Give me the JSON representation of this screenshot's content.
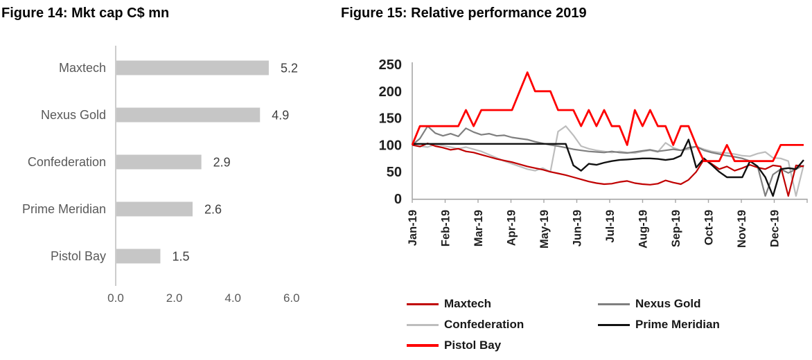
{
  "figures": [
    {
      "title": "Figure 14: Mkt cap C$ mn"
    },
    {
      "title": "Figure 15: Relative performance 2019"
    }
  ],
  "colors": {
    "bar_fill": "#c6c6c6",
    "axis_line": "#bfbfbf",
    "bar_label": "#595959",
    "bar_value": "#3f3f3f",
    "line_axis": "#a6a6a6",
    "line_tick_text": "#1f1f1f"
  },
  "chart_data": [
    {
      "type": "bar",
      "orientation": "horizontal",
      "title": "Figure 14: Mkt cap C$ mn",
      "categories": [
        "Maxtech",
        "Nexus Gold",
        "Confederation",
        "Prime Meridian",
        "Pistol Bay"
      ],
      "values": [
        5.2,
        4.9,
        2.9,
        2.6,
        1.5
      ],
      "value_labels": [
        "5.2",
        "4.9",
        "2.9",
        "2.6",
        "1.5"
      ],
      "xlabel": "",
      "ylabel": "",
      "xlim": [
        0.0,
        6.0
      ],
      "x_tick_values": [
        0,
        2,
        4,
        6
      ],
      "x_tick_labels": [
        "0.0",
        "2.0",
        "4.0",
        "6.0"
      ],
      "grid": false
    },
    {
      "type": "line",
      "title": "Figure 15: Relative performance 2019",
      "xlabel": "",
      "ylabel": "",
      "ylim": [
        0,
        250
      ],
      "y_tick_values": [
        0,
        50,
        100,
        150,
        200,
        250
      ],
      "y_tick_labels": [
        "0",
        "50",
        "100",
        "150",
        "200",
        "250"
      ],
      "x_categories": [
        "Jan-19",
        "Feb-19",
        "Mar-19",
        "Apr-19",
        "May-19",
        "Jun-19",
        "Jul-19",
        "Aug-19",
        "Sep-19",
        "Oct-19",
        "Nov-19",
        "Dec-19"
      ],
      "grid": false,
      "legend_position": "bottom",
      "series": [
        {
          "name": "Maxtech",
          "color": "#c00000",
          "values": [
            100,
            97,
            103,
            98,
            95,
            91,
            93,
            88,
            86,
            82,
            78,
            74,
            71,
            68,
            64,
            60,
            57,
            54,
            50,
            47,
            44,
            40,
            36,
            32,
            29,
            27,
            28,
            31,
            33,
            29,
            27,
            26,
            28,
            34,
            30,
            27,
            35,
            50,
            73,
            65,
            55,
            60,
            52,
            57,
            63,
            58,
            55,
            62,
            60,
            5,
            62,
            60
          ]
        },
        {
          "name": "Nexus Gold",
          "color": "#7f7f7f",
          "values": [
            100,
            112,
            135,
            122,
            117,
            121,
            116,
            131,
            124,
            119,
            121,
            117,
            118,
            114,
            112,
            110,
            106,
            103,
            100,
            98,
            95,
            92,
            90,
            88,
            87,
            86,
            88,
            86,
            85,
            87,
            89,
            91,
            88,
            90,
            92,
            90,
            95,
            97,
            90,
            86,
            83,
            80,
            78,
            75,
            70,
            60,
            5,
            45,
            55,
            48,
            55,
            62
          ]
        },
        {
          "name": "Confederation",
          "color": "#bdbdbd",
          "values": [
            100,
            98,
            96,
            101,
            99,
            96,
            93,
            96,
            92,
            88,
            82,
            76,
            70,
            65,
            60,
            55,
            52,
            57,
            50,
            125,
            135,
            118,
            98,
            93,
            90,
            88,
            86,
            88,
            86,
            85,
            88,
            90,
            87,
            104,
            95,
            90,
            92,
            97,
            92,
            88,
            86,
            85,
            83,
            80,
            79,
            84,
            87,
            76,
            75,
            70,
            5,
            63
          ]
        },
        {
          "name": "Prime Meridian",
          "color": "#111111",
          "values": [
            102,
            102,
            102,
            102,
            102,
            102,
            102,
            102,
            102,
            102,
            102,
            102,
            102,
            102,
            102,
            102,
            102,
            102,
            102,
            102,
            102,
            62,
            52,
            65,
            63,
            67,
            70,
            72,
            73,
            74,
            75,
            75,
            74,
            72,
            74,
            80,
            110,
            58,
            75,
            63,
            50,
            40,
            40,
            40,
            70,
            60,
            40,
            5,
            55,
            57,
            55,
            72
          ]
        },
        {
          "name": "Pistol Bay",
          "color": "#fe0000",
          "values": [
            100,
            135,
            135,
            135,
            135,
            135,
            135,
            165,
            135,
            165,
            165,
            165,
            165,
            165,
            200,
            235,
            200,
            200,
            200,
            165,
            165,
            165,
            135,
            165,
            135,
            165,
            135,
            135,
            100,
            165,
            135,
            165,
            135,
            135,
            100,
            135,
            135,
            100,
            70,
            70,
            70,
            100,
            70,
            70,
            70,
            70,
            70,
            70,
            100,
            100,
            100,
            100
          ]
        }
      ],
      "legend": {
        "columns": [
          {
            "items": [
              {
                "label": "Maxtech",
                "series": 0
              },
              {
                "label": "Confederation",
                "series": 2
              },
              {
                "label": "Pistol Bay",
                "series": 4
              }
            ]
          },
          {
            "items": [
              {
                "label": "Nexus Gold",
                "series": 1
              },
              {
                "label": "Prime Meridian",
                "series": 3
              }
            ]
          }
        ]
      }
    }
  ]
}
